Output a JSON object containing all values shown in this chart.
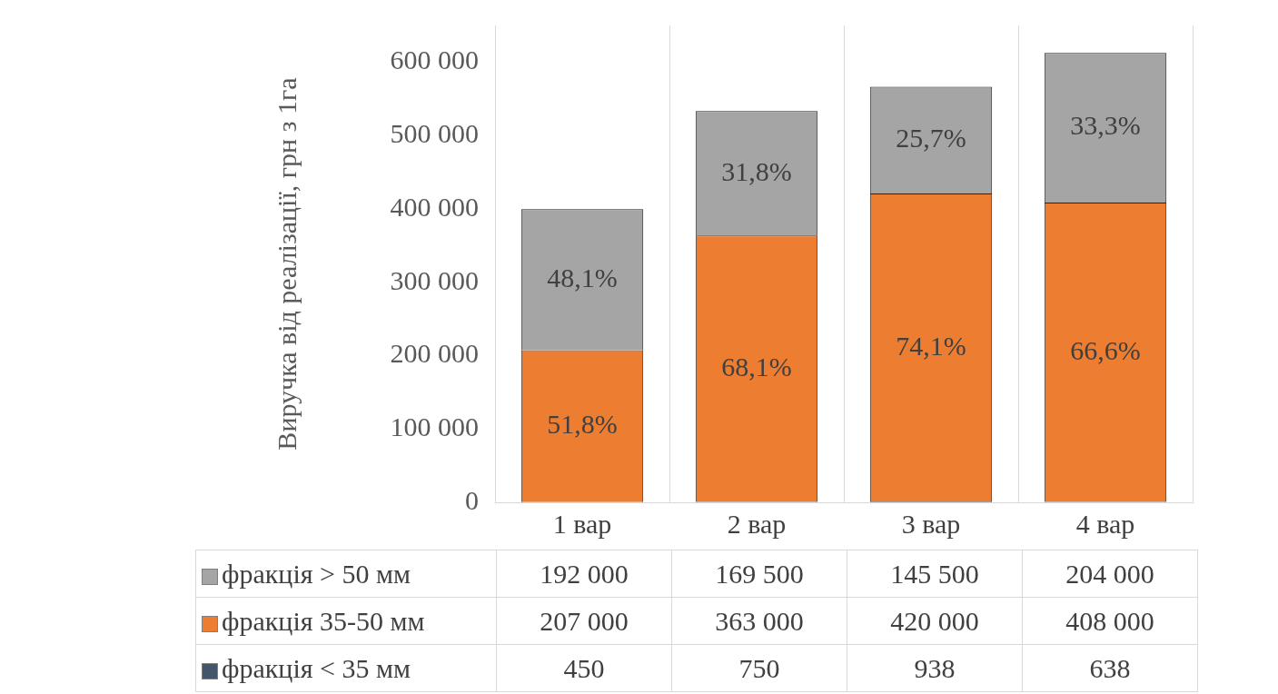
{
  "chart_data": {
    "type": "bar",
    "stacked": true,
    "ylabel": "Виручка від реалізації, грн з 1га",
    "categories": [
      "1 вар",
      "2 вар",
      "3 вар",
      "4 вар"
    ],
    "series": [
      {
        "name": "фракція < 35 мм",
        "color": "#44546a",
        "values": [
          450,
          750,
          938,
          638
        ],
        "value_labels": [
          "450",
          "750",
          "938",
          "638"
        ]
      },
      {
        "name": "фракція 35-50 мм",
        "color": "#ed7d31",
        "values": [
          207000,
          363000,
          420000,
          408000
        ],
        "value_labels": [
          "207 000",
          "363 000",
          "420 000",
          "408 000"
        ]
      },
      {
        "name": "фракція > 50 мм",
        "color": "#a5a5a5",
        "values": [
          192000,
          169500,
          145500,
          204000
        ],
        "value_labels": [
          "192 000",
          "169 500",
          "145 500",
          "204 000"
        ]
      }
    ],
    "annotations": [
      "51,8%",
      "48,1%",
      "68,1%",
      "31,8%",
      "74,1%",
      "25,7%",
      "66,6%",
      "33,3%"
    ],
    "ylim": [
      0,
      650000
    ],
    "yticks": [
      {
        "value": 0,
        "label": "0"
      },
      {
        "value": 100000,
        "label": "100 000"
      },
      {
        "value": 200000,
        "label": "200 000"
      },
      {
        "value": 300000,
        "label": "300 000"
      },
      {
        "value": 400000,
        "label": "400 000"
      },
      {
        "value": 500000,
        "label": "500 000"
      },
      {
        "value": 600000,
        "label": "600 000"
      }
    ],
    "grid": "x",
    "legend": "bottom",
    "data_labels": true
  }
}
